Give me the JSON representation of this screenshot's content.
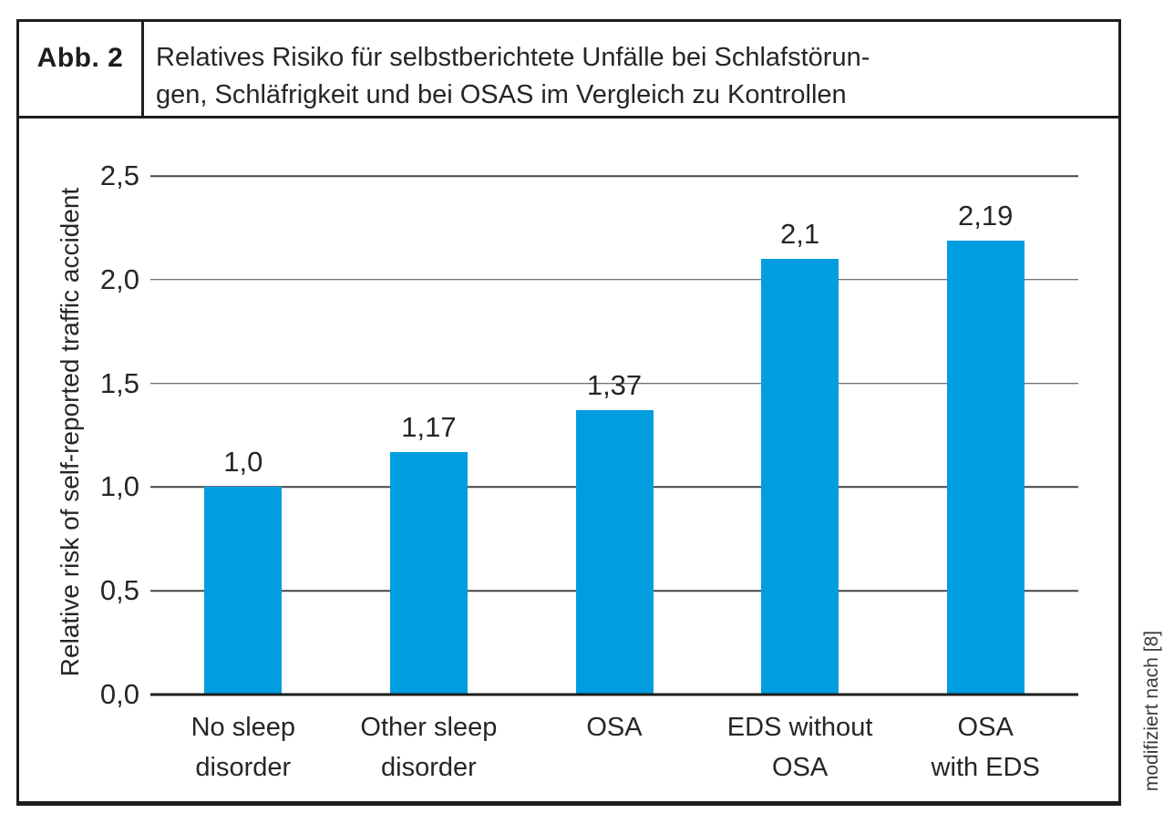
{
  "figure": {
    "label": "Abb. 2",
    "title": "Relatives Risiko für selbstberichtete Unfälle bei Schlafstörungen, Schläfrigkeit und bei OSAS im Vergleich zu Kontrollen",
    "title_lines": [
      "Relatives Risiko für selbstberichtete Unfälle bei Schlafstörun-",
      "gen, Schläfrigkeit und bei OSAS im Vergleich zu Kontrollen"
    ],
    "credit": "modifiziert nach [8]"
  },
  "chart_data": {
    "type": "bar",
    "categories": [
      "No sleep disorder",
      "Other sleep disorder",
      "OSA",
      "EDS without OSA",
      "OSA with EDS"
    ],
    "category_lines": [
      [
        "No sleep",
        "disorder"
      ],
      [
        "Other sleep",
        "disorder"
      ],
      [
        "OSA"
      ],
      [
        "EDS without",
        "OSA"
      ],
      [
        "OSA",
        "with EDS"
      ]
    ],
    "values": [
      1.0,
      1.17,
      1.37,
      2.1,
      2.19
    ],
    "value_labels": [
      "1,0",
      "1,17",
      "1,37",
      "2,1",
      "2,19"
    ],
    "title": "",
    "xlabel": "",
    "ylabel": "Relative risk of self-reported traffic accident",
    "ylim": [
      0,
      2.5
    ],
    "yticks": [
      0,
      0.5,
      1,
      1.5,
      2,
      2.5
    ],
    "ytick_labels": [
      "0,0",
      "0,5",
      "1,0",
      "1,5",
      "2,0",
      "2,5"
    ],
    "bar_color": "#009EE0",
    "grid": true,
    "legend": false
  }
}
